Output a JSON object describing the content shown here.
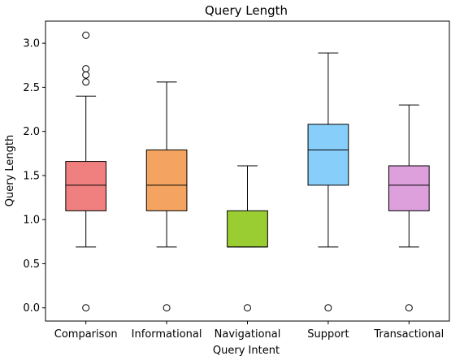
{
  "chart_data": {
    "type": "boxplot",
    "title": "Query Length",
    "xlabel": "Query Intent",
    "ylabel": "Query Length",
    "ylim": [
      -0.15,
      3.25
    ],
    "yticks": [
      0.0,
      0.5,
      1.0,
      1.5,
      2.0,
      2.5,
      3.0
    ],
    "ytick_labels": [
      "0.0",
      "0.5",
      "1.0",
      "1.5",
      "2.0",
      "2.5",
      "3.0"
    ],
    "grid": false,
    "legend": "none",
    "categories": [
      "Comparison",
      "Informational",
      "Navigational",
      "Support",
      "Transactional"
    ],
    "boxes": [
      {
        "category": "Comparison",
        "color": "#f08080",
        "whisker_low": 0.69,
        "q1": 1.1,
        "median": 1.39,
        "q3": 1.66,
        "whisker_high": 2.4,
        "outliers": [
          0.0,
          2.56,
          2.64,
          2.71,
          3.09
        ]
      },
      {
        "category": "Informational",
        "color": "#f4a460",
        "whisker_low": 0.69,
        "q1": 1.1,
        "median": 1.39,
        "q3": 1.79,
        "whisker_high": 2.56,
        "outliers": [
          0.0
        ]
      },
      {
        "category": "Navigational",
        "color": "#9acd32",
        "whisker_low": 0.69,
        "q1": 0.69,
        "median": 0.69,
        "q3": 1.1,
        "whisker_high": 1.61,
        "outliers": [
          0.0
        ]
      },
      {
        "category": "Support",
        "color": "#87cefa",
        "whisker_low": 0.69,
        "q1": 1.39,
        "median": 1.79,
        "q3": 2.08,
        "whisker_high": 2.89,
        "outliers": [
          0.0
        ]
      },
      {
        "category": "Transactional",
        "color": "#dda0dd",
        "whisker_low": 0.69,
        "q1": 1.1,
        "median": 1.39,
        "q3": 1.61,
        "whisker_high": 2.3,
        "outliers": [
          0.0
        ]
      }
    ]
  }
}
